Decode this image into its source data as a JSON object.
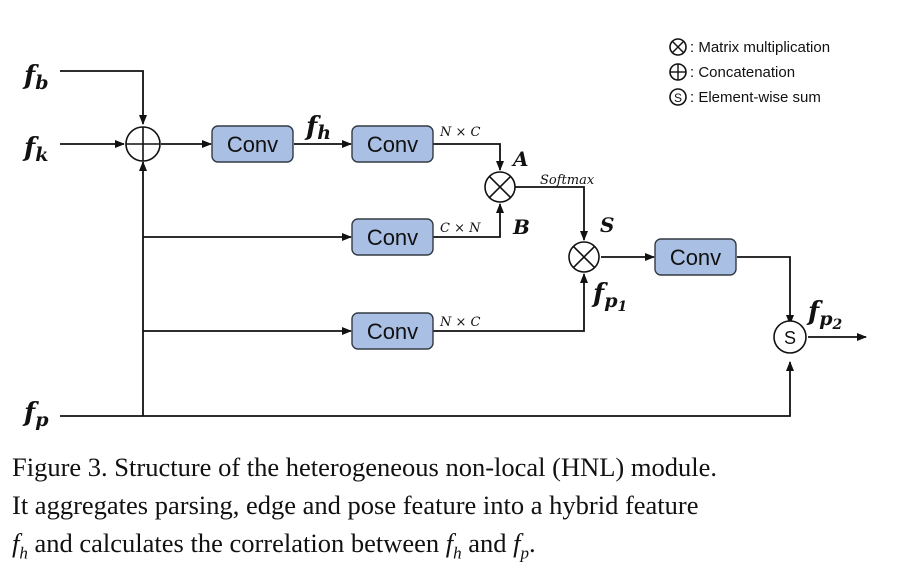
{
  "legend": {
    "items": [
      {
        "symbol": "⊗",
        "text": ": Matrix multiplication"
      },
      {
        "symbol": "⊕",
        "text": ": Concatenation"
      },
      {
        "symbol": "S",
        "text": ": Element-wise sum"
      }
    ]
  },
  "inputs": {
    "fb": {
      "base": "f",
      "sub": "b"
    },
    "fk": {
      "base": "f",
      "sub": "k"
    },
    "fp": {
      "base": "f",
      "sub": "p"
    }
  },
  "boxes": {
    "conv1": "Conv",
    "conv2": "Conv",
    "conv3": "Conv",
    "conv4": "Conv",
    "conv5": "Conv"
  },
  "labels": {
    "fh": {
      "base": "f",
      "sub": "h"
    },
    "dim_nc_top": "N × C",
    "dim_cn": "C × N",
    "dim_nc_bottom": "N × C",
    "A": "A",
    "B": "B",
    "softmax": "Softmax",
    "S": "S",
    "fp1": {
      "base": "f",
      "sub": "p",
      "subsub": "1"
    },
    "fp2": {
      "base": "f",
      "sub": "p",
      "subsub": "2"
    },
    "sum_symbol": "S"
  },
  "caption": {
    "line1": "Figure 3. Structure of the heterogeneous non-local (HNL) module.",
    "line2": "It aggregates parsing, edge and pose feature into a hybrid feature",
    "line3_a": "f",
    "line3_a_sub": "h",
    "line3_b": " and calculates the correlation between ",
    "line3_c": "f",
    "line3_c_sub": "h",
    "line3_d": " and ",
    "line3_e": "f",
    "line3_e_sub": "p",
    "line3_f": "."
  }
}
